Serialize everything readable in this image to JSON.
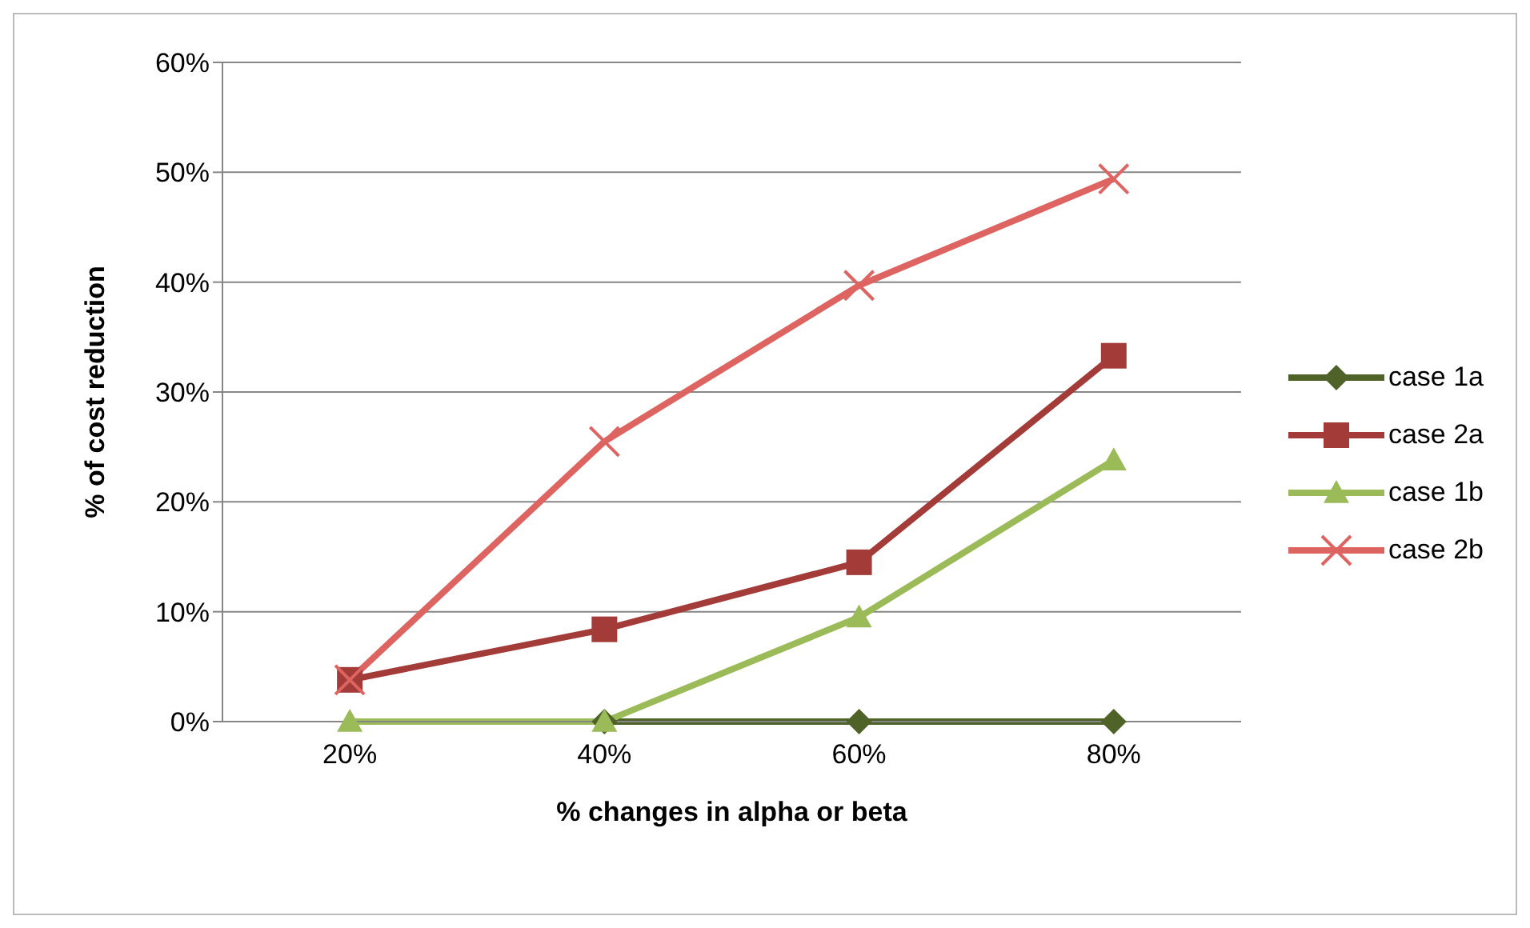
{
  "chart_data": {
    "type": "line",
    "xlabel": "% changes in alpha or beta",
    "ylabel": "% of cost reduction",
    "categories": [
      "20%",
      "40%",
      "60%",
      "80%"
    ],
    "series": [
      {
        "name": "case 1a",
        "color": "#4f6228",
        "marker": "diamond",
        "values": [
          null,
          0,
          0,
          0
        ]
      },
      {
        "name": "case 2a",
        "color": "#a33c38",
        "marker": "square",
        "values": [
          3.8,
          8.4,
          14.5,
          33.3
        ]
      },
      {
        "name": "case 1b",
        "color": "#9bbb59",
        "marker": "triangle",
        "values": [
          0,
          0,
          9.5,
          23.8
        ]
      },
      {
        "name": "case 2b",
        "color": "#dd6460",
        "marker": "cross",
        "values": [
          3.8,
          25.5,
          39.7,
          49.4
        ]
      }
    ],
    "ylim": [
      0,
      60
    ],
    "yticks": [
      {
        "value": 0,
        "label": "0%"
      },
      {
        "value": 10,
        "label": "10%"
      },
      {
        "value": 20,
        "label": "20%"
      },
      {
        "value": 30,
        "label": "30%"
      },
      {
        "value": 40,
        "label": "40%"
      },
      {
        "value": 50,
        "label": "50%"
      },
      {
        "value": 60,
        "label": "60%"
      }
    ],
    "grid": "y",
    "legend": "right",
    "line_style": "solid"
  }
}
